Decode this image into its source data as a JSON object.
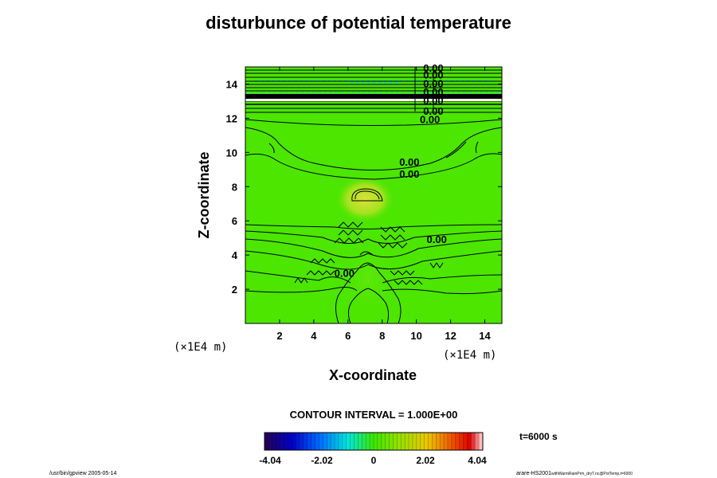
{
  "chart_data": {
    "type": "heatmap",
    "title": "disturbunce of potential temperature",
    "xlabel": "X-coordinate",
    "ylabel": "Z-coordinate",
    "x_unit": "(×1E4 m)",
    "y_unit": "(×1E4 m)",
    "xlim": [
      0,
      15
    ],
    "ylim": [
      0,
      15
    ],
    "x_ticks": [
      "2",
      "4",
      "6",
      "8",
      "10",
      "12",
      "14"
    ],
    "y_ticks": [
      "2",
      "4",
      "6",
      "8",
      "10",
      "12",
      "14"
    ],
    "contour_interval_text": "CONTOUR INTERVAL = 1.000E+00",
    "contour_labels": [
      {
        "text": "0.00",
        "x": 10.4,
        "z": 14.9
      },
      {
        "text": "0.00",
        "x": 10.4,
        "z": 14.5
      },
      {
        "text": "0.00",
        "x": 10.4,
        "z": 14.0
      },
      {
        "text": "0.00",
        "x": 10.4,
        "z": 13.5
      },
      {
        "text": "0.00",
        "x": 10.4,
        "z": 13.0
      },
      {
        "text": "0.00",
        "x": 10.4,
        "z": 12.4
      },
      {
        "text": "0.00",
        "x": 10.2,
        "z": 11.9
      },
      {
        "text": "0.00",
        "x": 9.0,
        "z": 9.4
      },
      {
        "text": "0.00",
        "x": 9.0,
        "z": 8.7
      },
      {
        "text": "0.00",
        "x": 10.6,
        "z": 4.9
      },
      {
        "text": "0.00",
        "x": 5.2,
        "z": 2.9
      }
    ],
    "colorbar": {
      "range": [
        -4.04,
        4.04
      ],
      "tick_labels": [
        "-4.04",
        "-2.02",
        "0",
        "2.02",
        "4.04"
      ]
    },
    "time_label": "t=6000 s"
  },
  "footer": {
    "left": "/usr/bin/gpview 2005-05-14",
    "right_main": "arare-HS2001",
    "right_sub": "withWarmRainPrm_dryT.nc@PotTemp,t=6000"
  },
  "colors": {
    "field_green": "#4ce600",
    "warm_spot": "#cde03a",
    "neg_dash": "#00c8ff"
  }
}
